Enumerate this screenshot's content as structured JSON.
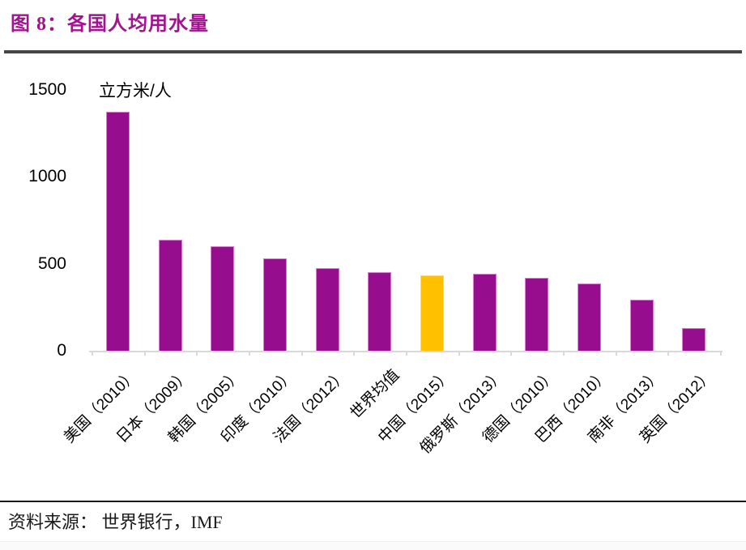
{
  "title": "图 8：各国人均用水量",
  "source": "资料来源：  世界银行，IMF",
  "colors": {
    "title": "#A0148E",
    "bar": "#960E8E",
    "bar_edge": "#D77FCE",
    "highlight": "#FFC000",
    "highlight_edge": "#FFD966",
    "axis": "#D9D9D9"
  },
  "chart_data": {
    "type": "bar",
    "title": "图 8：各国人均用水量",
    "unit_label": "立方米/人",
    "xlabel": "",
    "ylabel": "立方米/人",
    "categories": [
      "美国（2010）",
      "日本（2009）",
      "韩国（2005）",
      "印度（2010）",
      "法国（2012）",
      "世界均值",
      "中国（2015）",
      "俄罗斯（2013）",
      "德国（2010）",
      "巴西（2010）",
      "南非（2013）",
      "英国（2012）"
    ],
    "values": [
      1375,
      640,
      600,
      530,
      475,
      450,
      433,
      443,
      418,
      385,
      294,
      130
    ],
    "highlight_index": 6,
    "highlight_category": "中国（2015）",
    "yticks": [
      0,
      500,
      1000,
      1500
    ],
    "ylim": [
      0,
      1500
    ],
    "grid": false,
    "legend_position": "none",
    "source": "资料来源：  世界银行，IMF"
  }
}
